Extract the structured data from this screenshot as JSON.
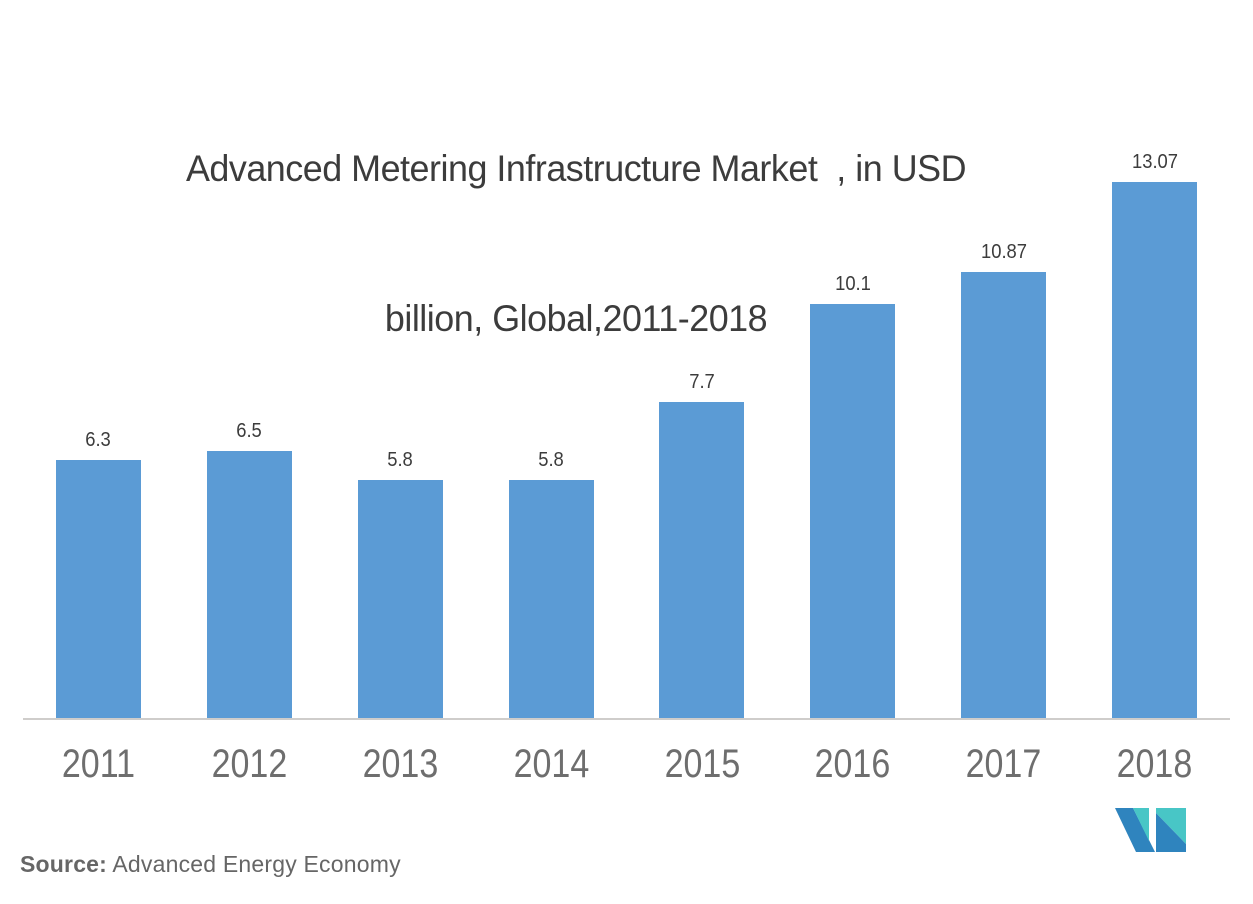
{
  "title": {
    "line1": "Advanced Metering Infrastructure Market  , in USD",
    "line2": "billion, Global,2011-2018",
    "color": "#3C3C3C"
  },
  "chart_data": {
    "type": "bar",
    "categories": [
      "2011",
      "2012",
      "2013",
      "2014",
      "2015",
      "2016",
      "2017",
      "2018"
    ],
    "values": [
      6.3,
      6.5,
      5.8,
      5.8,
      7.7,
      10.1,
      10.87,
      13.07
    ],
    "title": "Advanced Metering Infrastructure Market , in USD billion, Global, 2011-2018",
    "xlabel": "",
    "ylabel": "",
    "ylim": [
      0,
      13.07
    ],
    "grid": false,
    "legend": "none",
    "bar_color": "#5B9BD5",
    "value_label_color": "#3C3C3C",
    "tick_label_color": "#6E6E6E",
    "axis_line_color": "#CFCDCB"
  },
  "source": {
    "label": "Source:",
    "value": " Advanced Energy Economy"
  },
  "logo": {
    "name": "mordor-intelligence-mark",
    "teal": "#48C6C6",
    "blue": "#2F84BE"
  }
}
